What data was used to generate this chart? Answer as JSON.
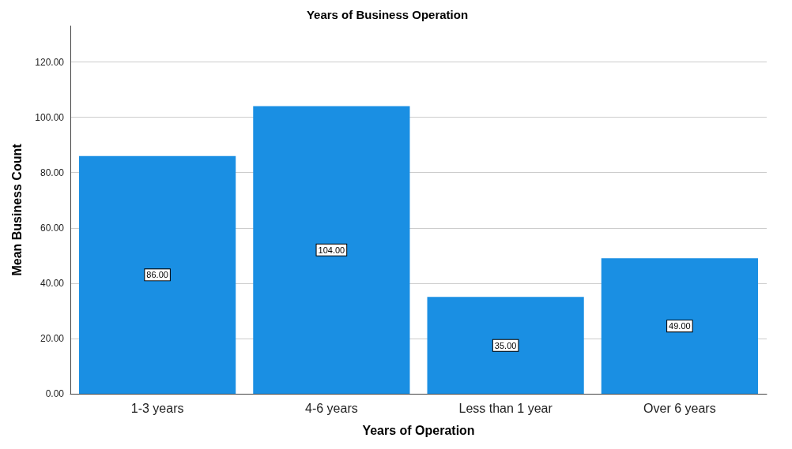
{
  "chart_data": {
    "type": "bar",
    "title": "Years of Business Operation",
    "xlabel": "Years of Operation",
    "ylabel": "Mean Business Count",
    "categories": [
      "1-3 years",
      "4-6 years",
      "Less than 1 year",
      "Over 6 years"
    ],
    "values": [
      86,
      104,
      35,
      49
    ],
    "value_labels": [
      "86.00",
      "104.00",
      "35.00",
      "49.00"
    ],
    "color": "#1a8fe3",
    "ylim": [
      0,
      133
    ],
    "yticks": [
      {
        "value": 0,
        "label": "0.00"
      },
      {
        "value": 20,
        "label": "20.00"
      },
      {
        "value": 40,
        "label": "40.00"
      },
      {
        "value": 60,
        "label": "60.00"
      },
      {
        "value": 80,
        "label": "80.00"
      },
      {
        "value": 100,
        "label": "100.00"
      },
      {
        "value": 120,
        "label": "120.00"
      }
    ],
    "grid": "y"
  }
}
